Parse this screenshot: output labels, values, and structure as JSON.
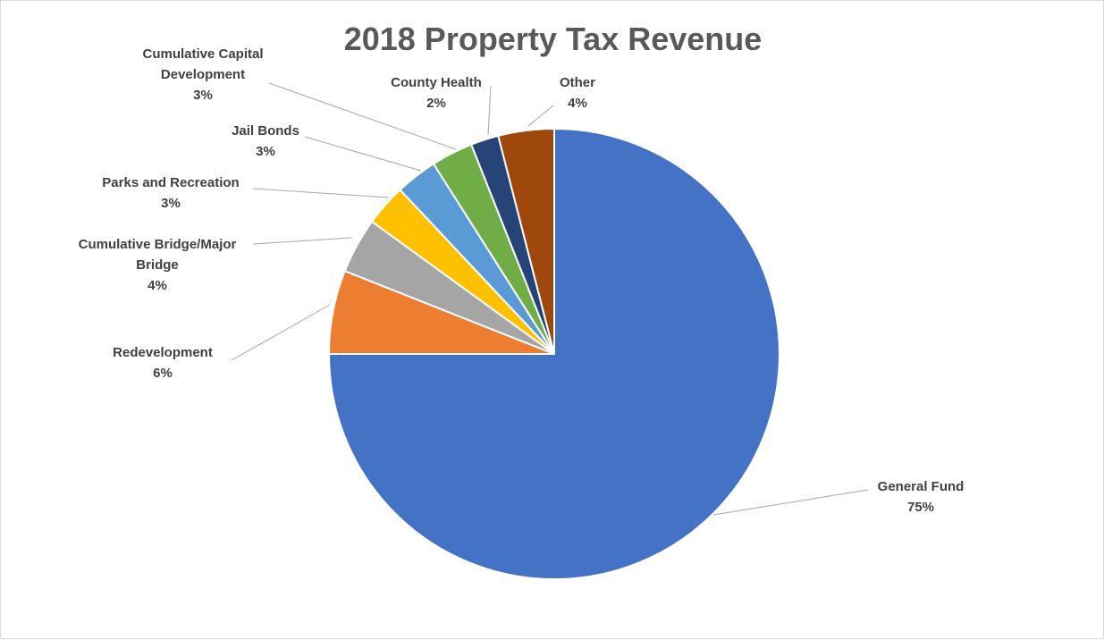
{
  "chart_data": {
    "type": "pie",
    "title": "2018 Property Tax Revenue",
    "categories": [
      "General Fund",
      "Redevelopment",
      "Cumulative Bridge/Major Bridge",
      "Parks and Recreation",
      "Jail Bonds",
      "Cumulative Capital Development",
      "County Health",
      "Other"
    ],
    "values": [
      75,
      6,
      4,
      3,
      3,
      3,
      2,
      4
    ],
    "value_labels": [
      "75%",
      "6%",
      "4%",
      "3%",
      "3%",
      "3%",
      "2%",
      "4%"
    ],
    "colors": [
      "#4472c4",
      "#ed7d31",
      "#a5a5a5",
      "#ffc000",
      "#5b9bd5",
      "#70ad47",
      "#264478",
      "#9e480e"
    ]
  }
}
